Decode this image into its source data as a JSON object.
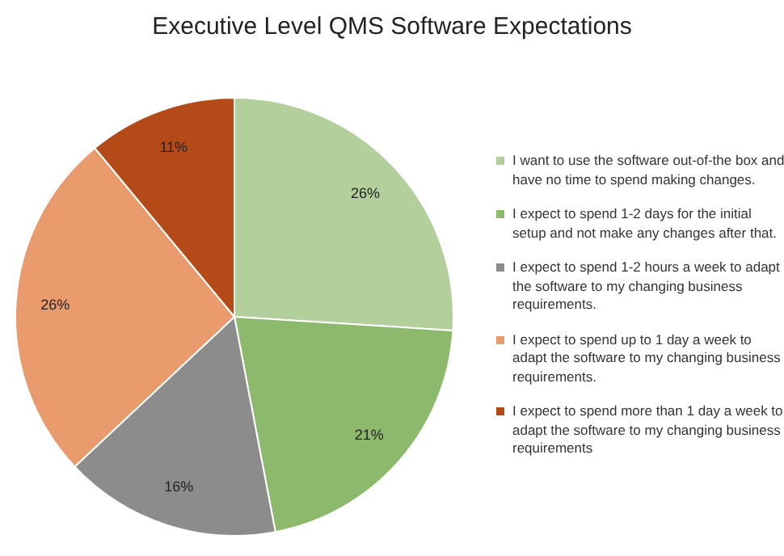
{
  "chart_data": {
    "type": "pie",
    "title": "Executive Level QMS Software Expectations",
    "categories": [
      "I want to use the software out-of-the box and have no time to spend making changes.",
      "I expect to spend 1-2 days for the initial setup and not make any changes after that.",
      "I expect to spend 1-2 hours a week to adapt the software to my changing business requirements.",
      "I expect to spend up to 1 day a week to adapt the software to my changing business requirements.",
      "I expect to spend more than 1 day a week to adapt the software to my changing business requirements"
    ],
    "values": [
      26,
      21,
      16,
      26,
      11
    ],
    "colors": [
      "#b3cf9c",
      "#8db96d",
      "#8c8c8c",
      "#e99b6e",
      "#b34a17"
    ],
    "value_labels": [
      "26%",
      "21%",
      "16%",
      "26%",
      "11%"
    ],
    "legend": "right"
  }
}
